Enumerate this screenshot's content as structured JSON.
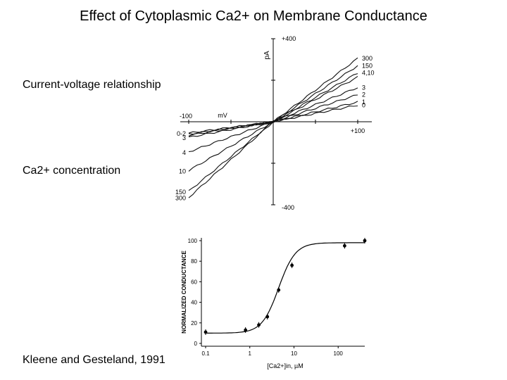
{
  "slide": {
    "title": "Effect of Cytoplasmic Ca2+ on Membrane Conductance",
    "label_iv": "Current-voltage relationship",
    "label_conc": "Ca2+ concentration",
    "citation": "Kleene and Gesteland, 1991"
  },
  "chart_data": [
    {
      "type": "line",
      "xlabel": "mV",
      "ylabel": "pA",
      "xlim": [
        -100,
        100
      ],
      "ylim": [
        -400,
        400
      ],
      "x_tick_labels": [
        "-100",
        "+100"
      ],
      "y_tick_labels": [
        "+400",
        "-400"
      ],
      "x": [
        -100,
        100
      ],
      "series": [
        {
          "name": "0-2",
          "neg_label": "0-2",
          "pos_label": "0",
          "values": [
            -55,
            80
          ]
        },
        {
          "name": "1",
          "neg_label": "",
          "pos_label": "1",
          "values": [
            -60,
            95
          ]
        },
        {
          "name": "2",
          "neg_label": "",
          "pos_label": "2",
          "values": [
            -65,
            130
          ]
        },
        {
          "name": "3",
          "neg_label": "3",
          "pos_label": "3",
          "values": [
            -75,
            165
          ]
        },
        {
          "name": "4",
          "neg_label": "4",
          "pos_label": "",
          "values": [
            -145,
            215
          ]
        },
        {
          "name": "10",
          "neg_label": "10",
          "pos_label": "4,10",
          "values": [
            -235,
            235
          ]
        },
        {
          "name": "150",
          "neg_label": "150",
          "pos_label": "150",
          "values": [
            -335,
            270
          ]
        },
        {
          "name": "300",
          "neg_label": "300",
          "pos_label": "300",
          "values": [
            -365,
            305
          ]
        }
      ],
      "grid": false
    },
    {
      "type": "scatter",
      "xlabel": "[Ca2+]in, µM",
      "ylabel": "NORMALIZED CONDUCTANCE",
      "xscale": "log",
      "xlim": [
        0.1,
        400
      ],
      "ylim": [
        0,
        100
      ],
      "x_tick_labels": [
        "0.1",
        "1",
        "10",
        "100"
      ],
      "y_tick_labels": [
        "0",
        "20",
        "40",
        "60",
        "80",
        "100"
      ],
      "points": {
        "x": [
          0.1,
          0.8,
          1.6,
          2.5,
          4.5,
          9.0,
          140,
          400
        ],
        "y": [
          11,
          13,
          18,
          26,
          52,
          76,
          95,
          100
        ]
      },
      "fit_curve": {
        "bottom": 10,
        "top": 98,
        "ec50": 4.5,
        "hill": 2.3
      },
      "grid": false
    }
  ]
}
